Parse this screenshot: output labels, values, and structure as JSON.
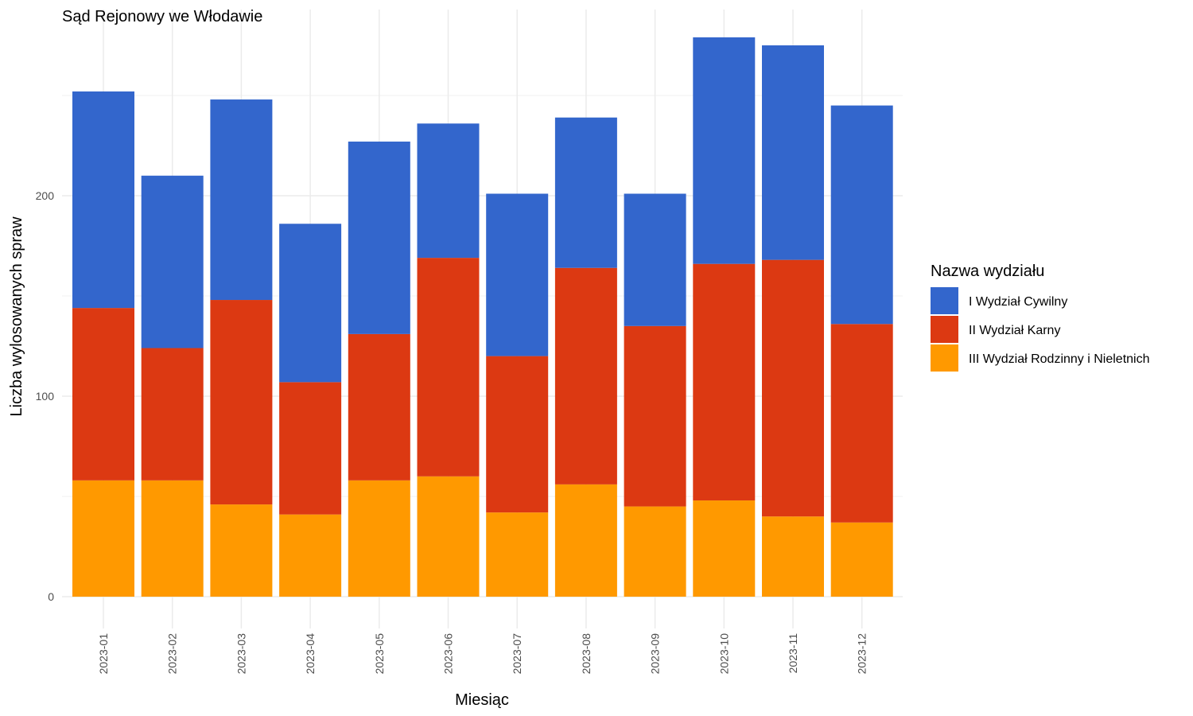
{
  "chart_data": {
    "type": "bar",
    "stacked": true,
    "title": "Sąd Rejonowy we Włodawie",
    "xlabel": "Miesiąc",
    "ylabel": "Liczba wylosowanych spraw",
    "ylim": [
      0,
      280
    ],
    "yticks": [
      0,
      100,
      200
    ],
    "grid": true,
    "legend_title": "Nazwa wydziału",
    "legend_position": "right",
    "categories": [
      "2023-01",
      "2023-02",
      "2023-03",
      "2023-04",
      "2023-05",
      "2023-06",
      "2023-07",
      "2023-08",
      "2023-09",
      "2023-10",
      "2023-11",
      "2023-12"
    ],
    "series": [
      {
        "name": "III Wydział Rodzinny i Nieletnich",
        "color": "#FF9900",
        "values": [
          58,
          58,
          46,
          41,
          58,
          60,
          42,
          56,
          45,
          48,
          40,
          37
        ]
      },
      {
        "name": "II Wydział Karny",
        "color": "#DC3912",
        "values": [
          86,
          66,
          102,
          66,
          73,
          109,
          78,
          108,
          90,
          118,
          128,
          99
        ]
      },
      {
        "name": "I Wydział Cywilny",
        "color": "#3366CC",
        "values": [
          108,
          86,
          100,
          79,
          96,
          67,
          81,
          75,
          66,
          113,
          107,
          109
        ]
      }
    ],
    "legend_order": [
      "I Wydział Cywilny",
      "II Wydział Karny",
      "III Wydział Rodzinny i Nieletnich"
    ]
  }
}
